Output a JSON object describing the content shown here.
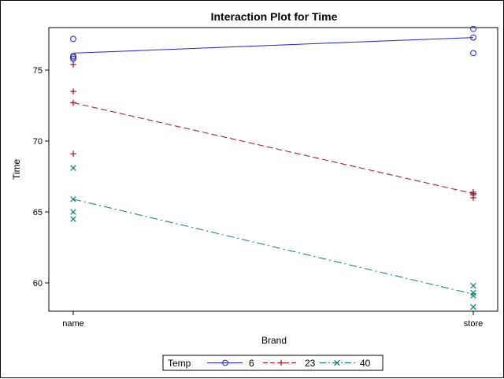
{
  "chart_data": {
    "type": "line",
    "title": "Interaction Plot for Time",
    "xlabel": "Brand",
    "ylabel": "Time",
    "categories": [
      "name",
      "store"
    ],
    "ylim": [
      58,
      78
    ],
    "yticks": [
      60,
      65,
      70,
      75
    ],
    "grid": false,
    "legend_title": "Temp",
    "legend_position": "bottom",
    "series": [
      {
        "name": "6",
        "color": "#2222cc",
        "marker": "circle",
        "line_style": "solid",
        "means": [
          76.2,
          77.3
        ],
        "points": [
          {
            "x": "name",
            "y": 77.2
          },
          {
            "x": "name",
            "y": 76.0
          },
          {
            "x": "name",
            "y": 75.9
          },
          {
            "x": "name",
            "y": 75.8
          },
          {
            "x": "store",
            "y": 77.9
          },
          {
            "x": "store",
            "y": 77.3
          },
          {
            "x": "store",
            "y": 76.2
          }
        ]
      },
      {
        "name": "23",
        "color": "#a01020",
        "marker": "plus",
        "line_style": "dashed",
        "means": [
          72.7,
          66.3
        ],
        "points": [
          {
            "x": "name",
            "y": 75.4
          },
          {
            "x": "name",
            "y": 73.5
          },
          {
            "x": "name",
            "y": 72.7
          },
          {
            "x": "name",
            "y": 69.1
          },
          {
            "x": "store",
            "y": 66.4
          },
          {
            "x": "store",
            "y": 66.3
          },
          {
            "x": "store",
            "y": 66.2
          },
          {
            "x": "store",
            "y": 66.0
          }
        ]
      },
      {
        "name": "40",
        "color": "#0a7a6e",
        "marker": "x",
        "line_style": "dashdot",
        "means": [
          65.9,
          59.2
        ],
        "points": [
          {
            "x": "name",
            "y": 68.1
          },
          {
            "x": "name",
            "y": 65.9
          },
          {
            "x": "name",
            "y": 65.0
          },
          {
            "x": "name",
            "y": 64.5
          },
          {
            "x": "store",
            "y": 59.8
          },
          {
            "x": "store",
            "y": 59.3
          },
          {
            "x": "store",
            "y": 59.1
          },
          {
            "x": "store",
            "y": 58.3
          }
        ]
      }
    ]
  }
}
